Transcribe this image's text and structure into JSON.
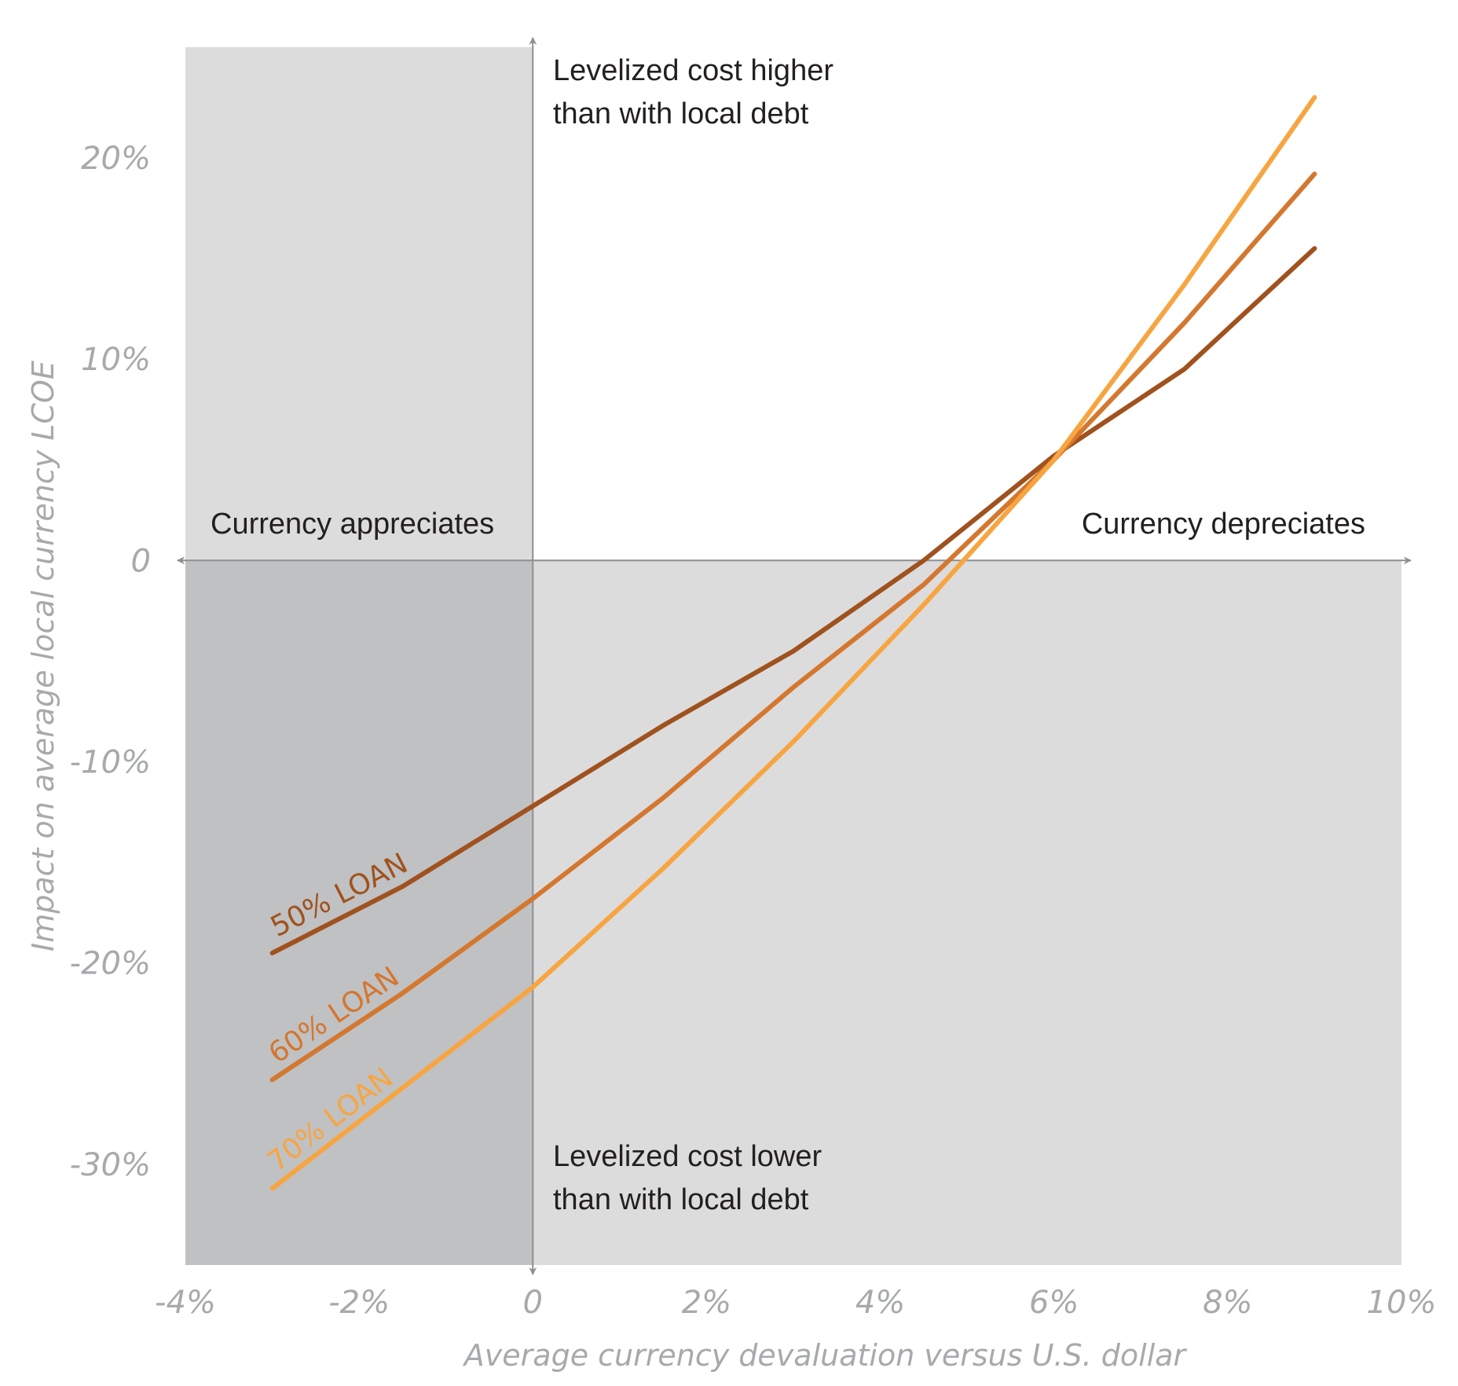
{
  "chart_data": {
    "type": "line",
    "title": "",
    "xlabel": "Average currency devaluation versus U.S. dollar",
    "ylabel": "Impact on average local currency LCOE",
    "xlim": [
      -4,
      10
    ],
    "ylim": [
      -35,
      25.5
    ],
    "x_ticks": [
      {
        "value": -4,
        "label": "-4%"
      },
      {
        "value": -2,
        "label": "-2%"
      },
      {
        "value": 0,
        "label": "0"
      },
      {
        "value": 2,
        "label": "2%"
      },
      {
        "value": 4,
        "label": "4%"
      },
      {
        "value": 6,
        "label": "6%"
      },
      {
        "value": 8,
        "label": "8%"
      },
      {
        "value": 10,
        "label": "10%"
      }
    ],
    "y_ticks": [
      {
        "value": 20,
        "label": "20%"
      },
      {
        "value": 10,
        "label": "10%"
      },
      {
        "value": 0,
        "label": "0"
      },
      {
        "value": -10,
        "label": "-10%"
      },
      {
        "value": -20,
        "label": "-20%"
      },
      {
        "value": -30,
        "label": "-30%"
      }
    ],
    "grid": false,
    "legend": "none",
    "series": [
      {
        "name": "50% LOAN",
        "color": "#a0521e",
        "points": [
          [
            -3,
            -19.5
          ],
          [
            -1.5,
            -16.2
          ],
          [
            0,
            -12.2
          ],
          [
            1.5,
            -8.2
          ],
          [
            3,
            -4.5
          ],
          [
            4.5,
            0
          ],
          [
            6,
            5.2
          ],
          [
            7.5,
            9.5
          ],
          [
            9,
            15.5
          ]
        ]
      },
      {
        "name": "60% LOAN",
        "color": "#d4772f",
        "points": [
          [
            -3,
            -25.8
          ],
          [
            -1.5,
            -21.5
          ],
          [
            0,
            -16.8
          ],
          [
            1.5,
            -11.8
          ],
          [
            3,
            -6.3
          ],
          [
            4.5,
            -1.2
          ],
          [
            6,
            5
          ],
          [
            7.5,
            11.8
          ],
          [
            9,
            19.2
          ]
        ]
      },
      {
        "name": "70% LOAN",
        "color": "#f7a541",
        "points": [
          [
            -3,
            -31.2
          ],
          [
            -1.5,
            -26.2
          ],
          [
            0,
            -21.2
          ],
          [
            1.5,
            -15.3
          ],
          [
            3,
            -9
          ],
          [
            4.5,
            -2.2
          ],
          [
            6,
            5
          ],
          [
            7.5,
            13.7
          ],
          [
            9,
            23
          ]
        ]
      }
    ],
    "annotations": {
      "top": [
        "Levelized cost higher",
        "than with local debt"
      ],
      "bottom": [
        "Levelized cost lower",
        "than with local debt"
      ],
      "left": "Currency appreciates",
      "right": "Currency depreciates"
    }
  },
  "colors": {
    "quadrant_light": "#dcdcdd",
    "quadrant_dark": "#c0c1c3",
    "axis": "#8e8f91"
  }
}
